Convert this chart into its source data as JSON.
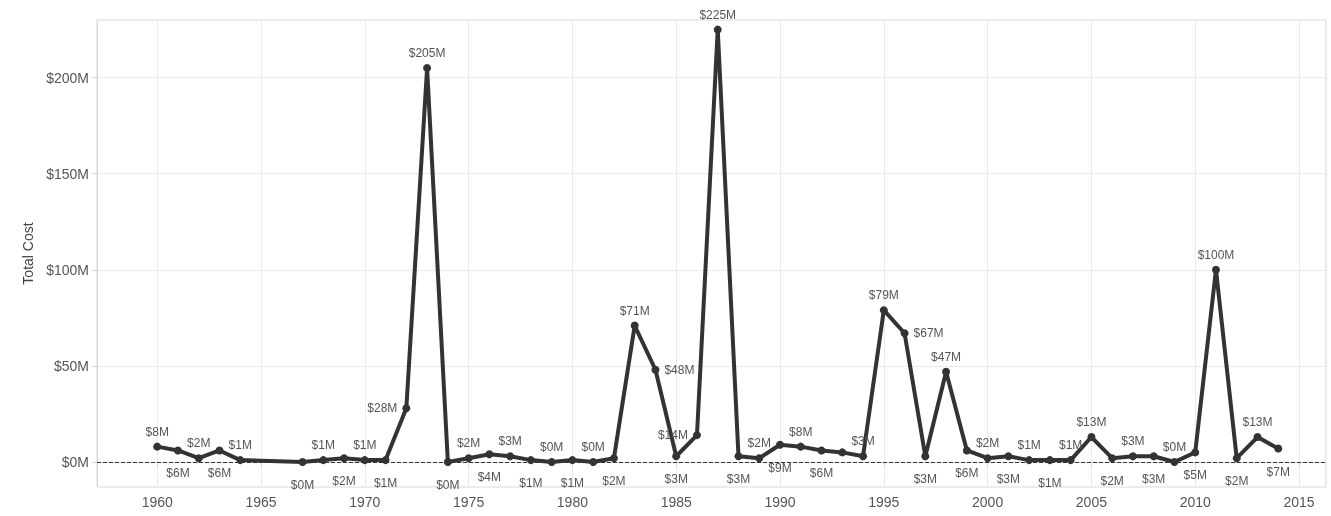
{
  "chart_data": {
    "type": "line",
    "ylabel": "Total Cost",
    "x": [
      1960,
      1961,
      1962,
      1963,
      1964,
      1967,
      1968,
      1969,
      1970,
      1971,
      1972,
      1973,
      1974,
      1975,
      1976,
      1977,
      1978,
      1979,
      1980,
      1981,
      1982,
      1983,
      1984,
      1985,
      1986,
      1987,
      1988,
      1989,
      1990,
      1991,
      1992,
      1993,
      1994,
      1995,
      1996,
      1997,
      1998,
      1999,
      2000,
      2001,
      2002,
      2003,
      2004,
      2005,
      2006,
      2007,
      2008,
      2009,
      2010,
      2011,
      2012,
      2013,
      2014
    ],
    "series": [
      {
        "color": "#333333",
        "values": [
          8,
          6,
          2,
          6,
          1,
          0,
          1,
          2,
          1,
          1,
          28,
          205,
          0,
          2,
          4,
          3,
          1,
          0,
          1,
          0,
          2,
          71,
          48,
          3,
          14,
          225,
          3,
          2,
          9,
          8,
          6,
          5,
          3,
          79,
          67,
          3,
          47,
          6,
          2,
          3,
          1,
          1,
          1,
          13,
          2,
          3,
          3,
          0,
          5,
          100,
          2,
          13,
          7
        ],
        "value_labels": [
          "$8M",
          "$6M",
          "$2M",
          "$6M",
          "$1M",
          "$0M",
          "$1M",
          "$2M",
          "$1M",
          "$1M",
          "$28M",
          "$205M",
          "$0M",
          "$2M",
          "$4M",
          "$3M",
          "$1M",
          "$0M",
          "$1M",
          "$0M",
          "$2M",
          "$71M",
          "$48M",
          "$3M",
          "$14M",
          "$225M",
          "$3M",
          "$2M",
          "$9M",
          "$8M",
          "$6M",
          null,
          "$3M",
          "$79M",
          "$67M",
          "$3M",
          "$47M",
          "$6M",
          "$2M",
          "$3M",
          "$1M",
          "$1M",
          "$1M",
          "$13M",
          "$2M",
          "$3M",
          "$3M",
          "$0M",
          "$5M",
          "$100M",
          "$2M",
          "$13M",
          "$7M"
        ]
      }
    ],
    "xlim": [
      1957.1,
      2016.3
    ],
    "xticks": [
      1960,
      1965,
      1970,
      1975,
      1980,
      1985,
      1990,
      1995,
      2000,
      2005,
      2010,
      2015
    ],
    "ylim": [
      -13,
      230
    ],
    "yticks": [
      {
        "value": 0,
        "label": "$0M"
      },
      {
        "value": 50,
        "label": "$50M"
      },
      {
        "value": 100,
        "label": "$100M"
      },
      {
        "value": 150,
        "label": "$150M"
      },
      {
        "value": 200,
        "label": "$200M"
      }
    ],
    "ref_lines": [
      {
        "axis": "y",
        "value": 0,
        "color": "#333333",
        "line_style": "dashed"
      }
    ],
    "grid": true,
    "marker": "circle",
    "line_style": "solid"
  }
}
